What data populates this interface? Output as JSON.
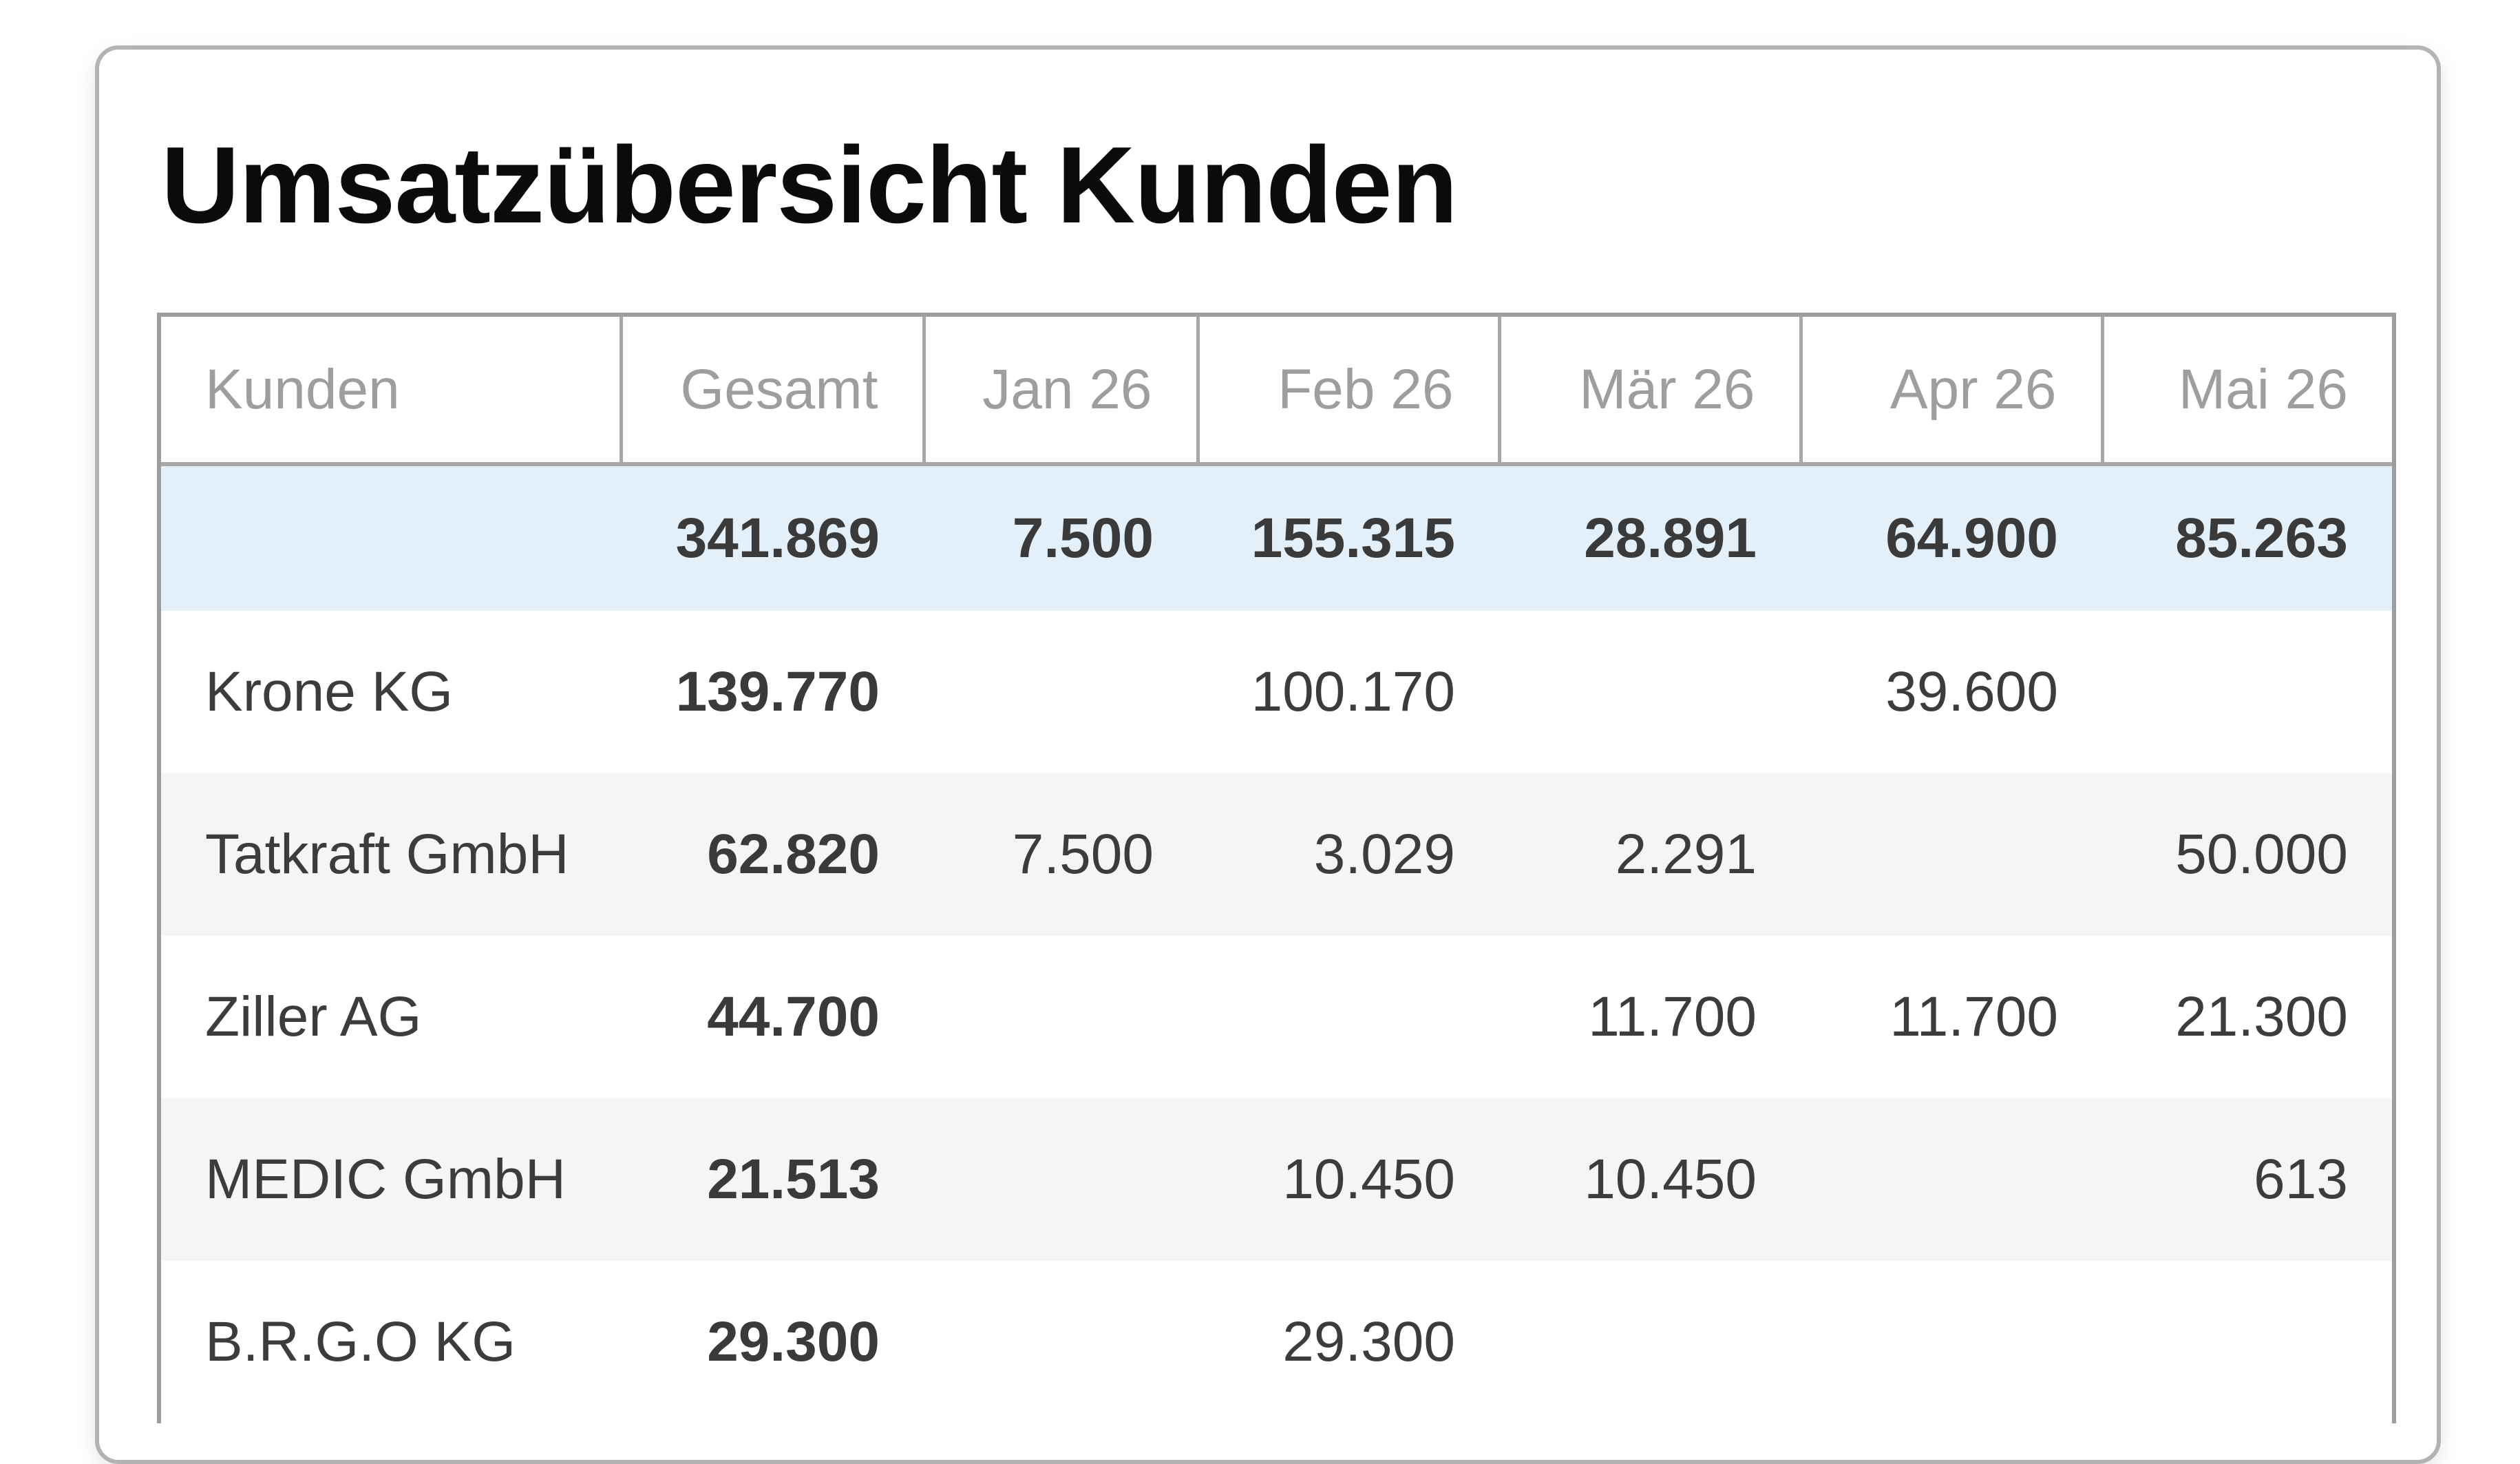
{
  "title": "Umsatzübersicht Kunden",
  "table": {
    "headers": [
      "Kunden",
      "Gesamt",
      "Jan 26",
      "Feb 26",
      "Mär 26",
      "Apr 26",
      "Mai 26"
    ],
    "summary": [
      "",
      "341.869",
      "7.500",
      "155.315",
      "28.891",
      "64.900",
      "85.263"
    ],
    "rows": [
      [
        "Krone KG",
        "139.770",
        "",
        "100.170",
        "",
        "39.600",
        ""
      ],
      [
        "Tatkraft GmbH",
        "62.820",
        "7.500",
        "3.029",
        "2.291",
        "",
        "50.000"
      ],
      [
        "Ziller AG",
        "44.700",
        "",
        "",
        "11.700",
        "11.700",
        "21.300"
      ],
      [
        "MEDIC GmbH",
        "21.513",
        "",
        "10.450",
        "10.450",
        "",
        "613"
      ],
      [
        "B.R.G.O KG",
        "29.300",
        "",
        "29.300",
        "",
        "",
        ""
      ]
    ]
  },
  "colors": {
    "summary_row_bg": "#e3eff9",
    "alt_row_bg": "#f5f5f5",
    "header_text": "#9e9e9e",
    "border": "#a8a8a8"
  }
}
